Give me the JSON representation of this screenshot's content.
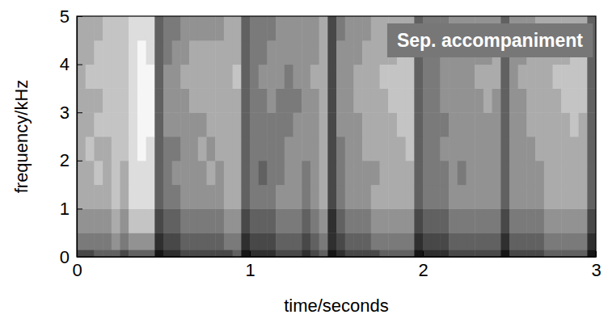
{
  "chart_data": {
    "type": "heatmap",
    "title": "Sep. accompaniment",
    "x_label": "time/seconds",
    "y_label": "frequency/kHz",
    "xlim": [
      0,
      3
    ],
    "ylim": [
      0,
      5
    ],
    "xticks": [
      0,
      1,
      2,
      3
    ],
    "yticks": [
      0,
      1,
      2,
      3,
      4,
      5
    ],
    "tick_labels": true,
    "grid": false,
    "x_bins": [
      0,
      0.05,
      0.1,
      0.15,
      0.2,
      0.25,
      0.3,
      0.35,
      0.4,
      0.45,
      0.5,
      0.55,
      0.6,
      0.65,
      0.7,
      0.75,
      0.8,
      0.85,
      0.9,
      0.95,
      1,
      1.05,
      1.1,
      1.15,
      1.2,
      1.25,
      1.3,
      1.35,
      1.4,
      1.45,
      1.5,
      1.55,
      1.6,
      1.65,
      1.7,
      1.75,
      1.8,
      1.85,
      1.9,
      1.95,
      2,
      2.05,
      2.1,
      2.15,
      2.2,
      2.25,
      2.3,
      2.35,
      2.4,
      2.45,
      2.5,
      2.55,
      2.6,
      2.65,
      2.7,
      2.75,
      2.8,
      2.85,
      2.9,
      2.95,
      3
    ],
    "y_bins": [
      0,
      0.15,
      0.5,
      1,
      1.5,
      2,
      2.5,
      3,
      3.5,
      4,
      4.5,
      5
    ],
    "cells": [
      [
        7,
        7,
        6,
        6,
        6,
        7,
        6,
        6,
        6,
        9,
        8,
        8,
        7,
        7,
        7,
        7,
        7,
        7,
        6,
        9,
        8,
        8,
        8,
        7,
        7,
        7,
        8,
        7,
        6,
        9,
        8,
        7,
        7,
        7,
        7,
        6,
        6,
        6,
        6,
        9,
        8,
        8,
        8,
        7,
        7,
        7,
        7,
        7,
        7,
        9,
        7,
        7,
        7,
        7,
        6,
        6,
        6,
        6,
        6,
        9
      ],
      [
        5,
        5,
        5,
        5,
        4,
        5,
        4,
        4,
        4,
        8,
        7,
        7,
        6,
        6,
        6,
        6,
        6,
        5,
        5,
        8,
        7,
        7,
        7,
        6,
        6,
        6,
        7,
        6,
        5,
        8,
        7,
        6,
        6,
        6,
        5,
        5,
        5,
        5,
        5,
        8,
        7,
        7,
        7,
        6,
        6,
        6,
        6,
        6,
        6,
        8,
        6,
        6,
        6,
        6,
        5,
        5,
        5,
        5,
        5,
        8
      ],
      [
        4,
        4,
        4,
        4,
        3,
        4,
        2,
        2,
        2,
        7,
        6,
        6,
        5,
        5,
        5,
        5,
        5,
        4,
        4,
        7,
        6,
        6,
        6,
        5,
        5,
        5,
        6,
        5,
        4,
        8,
        6,
        5,
        5,
        5,
        4,
        4,
        4,
        4,
        4,
        7,
        6,
        6,
        6,
        5,
        5,
        5,
        5,
        5,
        5,
        7,
        5,
        5,
        5,
        5,
        4,
        4,
        4,
        4,
        4,
        7
      ],
      [
        3,
        3,
        3,
        3,
        2,
        3,
        1,
        1,
        1,
        6,
        5,
        5,
        4,
        4,
        4,
        4,
        4,
        3,
        3,
        6,
        5,
        5,
        5,
        4,
        4,
        4,
        5,
        4,
        3,
        7,
        5,
        4,
        4,
        4,
        3,
        3,
        3,
        3,
        3,
        6,
        5,
        5,
        5,
        4,
        4,
        4,
        4,
        4,
        4,
        6,
        4,
        4,
        4,
        4,
        3,
        3,
        3,
        3,
        3,
        6
      ],
      [
        3,
        3,
        2,
        3,
        2,
        3,
        1,
        1,
        1,
        6,
        5,
        4,
        4,
        4,
        4,
        3,
        4,
        3,
        3,
        6,
        5,
        6,
        5,
        5,
        4,
        4,
        5,
        4,
        3,
        7,
        5,
        4,
        4,
        4,
        4,
        3,
        3,
        3,
        3,
        6,
        5,
        5,
        5,
        4,
        5,
        4,
        4,
        4,
        4,
        6,
        4,
        4,
        4,
        4,
        3,
        3,
        3,
        3,
        3,
        6
      ],
      [
        3,
        2,
        3,
        3,
        2,
        2,
        1,
        0,
        1,
        6,
        5,
        5,
        4,
        4,
        3,
        4,
        3,
        3,
        3,
        6,
        5,
        5,
        5,
        5,
        4,
        4,
        4,
        4,
        3,
        7,
        5,
        4,
        4,
        3,
        3,
        3,
        3,
        3,
        2,
        6,
        5,
        5,
        4,
        4,
        4,
        4,
        4,
        4,
        4,
        6,
        4,
        4,
        4,
        3,
        3,
        3,
        3,
        3,
        3,
        6
      ],
      [
        3,
        3,
        2,
        2,
        2,
        2,
        1,
        0,
        0,
        6,
        4,
        4,
        4,
        4,
        4,
        3,
        3,
        3,
        3,
        6,
        5,
        5,
        5,
        5,
        5,
        4,
        4,
        4,
        3,
        7,
        4,
        4,
        4,
        3,
        3,
        3,
        3,
        2,
        2,
        6,
        5,
        5,
        5,
        4,
        4,
        4,
        4,
        4,
        4,
        6,
        4,
        4,
        3,
        3,
        3,
        3,
        3,
        2,
        3,
        6
      ],
      [
        3,
        3,
        3,
        2,
        2,
        2,
        1,
        0,
        0,
        6,
        4,
        4,
        4,
        3,
        3,
        3,
        3,
        3,
        3,
        6,
        5,
        5,
        4,
        5,
        5,
        5,
        4,
        4,
        3,
        7,
        4,
        4,
        3,
        3,
        3,
        3,
        2,
        2,
        2,
        6,
        5,
        5,
        4,
        4,
        4,
        4,
        4,
        3,
        4,
        6,
        4,
        4,
        3,
        3,
        3,
        3,
        2,
        2,
        2,
        6
      ],
      [
        3,
        2,
        2,
        2,
        2,
        2,
        1,
        0,
        0,
        6,
        4,
        4,
        3,
        3,
        3,
        3,
        3,
        3,
        2,
        6,
        5,
        4,
        4,
        4,
        5,
        4,
        4,
        3,
        3,
        7,
        4,
        4,
        3,
        3,
        3,
        2,
        2,
        2,
        2,
        6,
        5,
        5,
        4,
        4,
        4,
        4,
        3,
        3,
        3,
        6,
        4,
        3,
        3,
        3,
        3,
        2,
        2,
        2,
        2,
        6
      ],
      [
        3,
        3,
        2,
        2,
        2,
        2,
        1,
        0,
        1,
        6,
        5,
        4,
        4,
        3,
        3,
        3,
        3,
        3,
        3,
        6,
        5,
        5,
        4,
        4,
        4,
        4,
        4,
        4,
        3,
        7,
        4,
        4,
        4,
        3,
        3,
        3,
        3,
        2,
        2,
        6,
        5,
        5,
        4,
        4,
        4,
        4,
        4,
        4,
        3,
        6,
        4,
        4,
        3,
        3,
        3,
        3,
        3,
        2,
        2,
        6
      ],
      [
        3,
        3,
        3,
        2,
        2,
        2,
        1,
        1,
        1,
        6,
        5,
        5,
        4,
        4,
        4,
        4,
        4,
        3,
        3,
        6,
        5,
        5,
        5,
        4,
        4,
        4,
        4,
        4,
        3,
        7,
        5,
        4,
        4,
        4,
        3,
        3,
        3,
        3,
        3,
        6,
        5,
        5,
        5,
        4,
        4,
        4,
        4,
        4,
        4,
        6,
        4,
        4,
        4,
        3,
        3,
        3,
        3,
        3,
        3,
        6
      ]
    ]
  }
}
